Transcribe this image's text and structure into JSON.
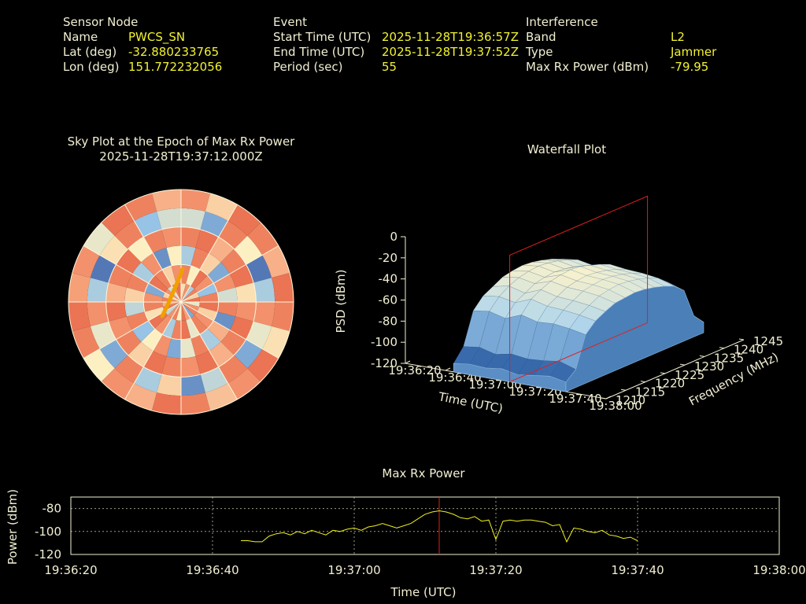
{
  "header": {
    "columns": [
      {
        "title": "Sensor Node",
        "rows": [
          {
            "label": "Name",
            "value": "PWCS_SN"
          },
          {
            "label": "Lat (deg)",
            "value": "-32.880233765"
          },
          {
            "label": "Lon (deg)",
            "value": "151.772232056"
          }
        ]
      },
      {
        "title": "Event",
        "rows": [
          {
            "label": "Start Time (UTC)",
            "value": "2025-11-28T19:36:57Z"
          },
          {
            "label": "End Time (UTC)",
            "value": "2025-11-28T19:37:52Z"
          },
          {
            "label": "Period (sec)",
            "value": "55"
          }
        ]
      },
      {
        "title": "Interference",
        "rows": [
          {
            "label": "Band",
            "value": "L2"
          },
          {
            "label": "Type",
            "value": "Jammer"
          },
          {
            "label": "Max Rx Power (dBm)",
            "value": "-79.95"
          }
        ]
      }
    ]
  },
  "chart_data": [
    {
      "type": "polar_heatmap",
      "title": "Sky Plot at the Epoch of Max Rx Power",
      "subtitle": "2025-11-28T19:37:12.000Z",
      "vlim": [
        0,
        1
      ],
      "track_color": "#f0a000",
      "values": [
        [
          0.55,
          0.8,
          0.3,
          0.85,
          0.6,
          0.9,
          0.45,
          0.8,
          0.85,
          0.2,
          0.75,
          0.9,
          0.5,
          0.85,
          0.8,
          0.35,
          0.9,
          0.7,
          0.85,
          0.6,
          0.8,
          0.4,
          0.85,
          0.9
        ],
        [
          0.85,
          0.5,
          0.9,
          0.8,
          0.25,
          0.85,
          0.9,
          0.6,
          0.8,
          0.85,
          0.45,
          0.9,
          0.85,
          0.3,
          0.8,
          0.9,
          0.55,
          0.85,
          0.8,
          0.2,
          0.9,
          0.85,
          0.6,
          0.8
        ],
        [
          0.3,
          0.85,
          0.6,
          0.2,
          0.8,
          0.4,
          0.85,
          0.15,
          0.7,
          0.3,
          0.85,
          0.45,
          0.2,
          0.8,
          0.5,
          0.25,
          0.85,
          0.35,
          0.6,
          0.85,
          0.3,
          0.8,
          0.15,
          0.5
        ],
        [
          0.85,
          0.9,
          0.7,
          0.85,
          0.9,
          0.55,
          0.8,
          0.9,
          0.85,
          0.7,
          0.9,
          0.8,
          0.85,
          0.9,
          0.6,
          0.85,
          0.8,
          0.9,
          0.7,
          0.85,
          0.9,
          0.5,
          0.85,
          0.8
        ],
        [
          0.4,
          0.2,
          0.85,
          0.5,
          0.1,
          0.3,
          0.8,
          0.45,
          0.2,
          0.85,
          0.35,
          0.15,
          0.6,
          0.3,
          0.85,
          0.2,
          0.45,
          0.8,
          0.3,
          0.1,
          0.55,
          0.85,
          0.25,
          0.4
        ],
        [
          0.8,
          0.6,
          0.9,
          0.85,
          0.7,
          0.9,
          0.85,
          0.55,
          0.9,
          0.8,
          0.65,
          0.85,
          0.9,
          0.7,
          0.8,
          0.5,
          0.85,
          0.9,
          0.75,
          0.8,
          0.45,
          0.9,
          0.85,
          0.7
        ]
      ]
    },
    {
      "type": "surface3d",
      "title": "Waterfall Plot",
      "x_label": "Time (UTC)",
      "y_label": "Frequency (MHz)",
      "z_label": "PSD (dBm)",
      "x": [
        "19:36:44",
        "19:36:52",
        "19:37:00",
        "19:37:08",
        "19:37:16",
        "19:37:24",
        "19:37:32",
        "19:37:40"
      ],
      "y": [
        1210,
        1212.5,
        1215,
        1217.5,
        1220,
        1222.5,
        1225,
        1227.5,
        1230,
        1232.5,
        1235,
        1237.5,
        1240,
        1242.5,
        1245
      ],
      "values": [
        [
          -112,
          -110,
          -111,
          -109,
          -112,
          -110,
          -108,
          -111
        ],
        [
          -100,
          -98,
          -102,
          -99,
          -101,
          -100,
          -98,
          -103
        ],
        [
          -70,
          -68,
          -72,
          -66,
          -70,
          -69,
          -71,
          -74
        ],
        [
          -60,
          -58,
          -61,
          -55,
          -59,
          -60,
          -62,
          -65
        ],
        [
          -55,
          -52,
          -56,
          -50,
          -54,
          -55,
          -57,
          -60
        ],
        [
          -50,
          -48,
          -51,
          -46,
          -49,
          -50,
          -52,
          -56
        ],
        [
          -48,
          -46,
          -49,
          -44,
          -47,
          -48,
          -50,
          -55
        ],
        [
          -47,
          -45,
          -48,
          -43,
          -46,
          -47,
          -49,
          -54
        ],
        [
          -48,
          -46,
          -49,
          -44,
          -47,
          -48,
          -50,
          -55
        ],
        [
          -50,
          -48,
          -51,
          -47,
          -49,
          -50,
          -52,
          -57
        ],
        [
          -53,
          -51,
          -54,
          -50,
          -52,
          -53,
          -55,
          -60
        ],
        [
          -57,
          -55,
          -58,
          -54,
          -56,
          -57,
          -59,
          -64
        ],
        [
          -65,
          -63,
          -66,
          -62,
          -64,
          -65,
          -67,
          -72
        ],
        [
          -95,
          -93,
          -96,
          -92,
          -94,
          -95,
          -97,
          -100
        ],
        [
          -110,
          -109,
          -111,
          -108,
          -110,
          -109,
          -112,
          -110
        ]
      ],
      "xlim": [
        "19:36:20",
        "19:38:00"
      ],
      "xticks": [
        "19:36:20",
        "19:36:40",
        "19:37:00",
        "19:37:20",
        "19:37:40",
        "19:38:00"
      ],
      "ylim": [
        1210,
        1245
      ],
      "yticks": [
        1210,
        1215,
        1220,
        1225,
        1230,
        1235,
        1240,
        1245
      ],
      "zlim": [
        -120,
        0
      ],
      "zticks": [
        -120,
        -100,
        -80,
        -60,
        -40,
        -20,
        0
      ],
      "marker_x": "19:37:12",
      "marker_color": "#e02020"
    },
    {
      "type": "line",
      "title": "Max Rx Power",
      "x_label": "Time (UTC)",
      "y_label": "Power (dBm)",
      "color": "#f0f020",
      "x": [
        "19:36:44",
        "19:36:45",
        "19:36:46",
        "19:36:47",
        "19:36:48",
        "19:36:49",
        "19:36:50",
        "19:36:51",
        "19:36:52",
        "19:36:53",
        "19:36:54",
        "19:36:55",
        "19:36:56",
        "19:36:57",
        "19:36:58",
        "19:36:59",
        "19:37:00",
        "19:37:01",
        "19:37:02",
        "19:37:03",
        "19:37:04",
        "19:37:05",
        "19:37:06",
        "19:37:07",
        "19:37:08",
        "19:37:09",
        "19:37:10",
        "19:37:11",
        "19:37:12",
        "19:37:13",
        "19:37:14",
        "19:37:15",
        "19:37:16",
        "19:37:17",
        "19:37:18",
        "19:37:19",
        "19:37:20",
        "19:37:21",
        "19:37:22",
        "19:37:23",
        "19:37:24",
        "19:37:25",
        "19:37:26",
        "19:37:27",
        "19:37:28",
        "19:37:29",
        "19:37:30",
        "19:37:31",
        "19:37:32",
        "19:37:33",
        "19:37:34",
        "19:37:35",
        "19:37:36",
        "19:37:37",
        "19:37:38",
        "19:37:39",
        "19:37:40"
      ],
      "values": [
        -108,
        -108,
        -109,
        -109,
        -104,
        -102,
        -101,
        -103,
        -100,
        -102,
        -99,
        -101,
        -103,
        -99,
        -100,
        -98,
        -97,
        -99,
        -96,
        -95,
        -93,
        -95,
        -97,
        -95,
        -93,
        -89,
        -85,
        -83,
        -82,
        -83,
        -85,
        -88,
        -89,
        -87,
        -91,
        -90,
        -107,
        -91,
        -90,
        -91,
        -90,
        -90,
        -91,
        -92,
        -95,
        -94,
        -109,
        -97,
        -98,
        -100,
        -101,
        -99,
        -103,
        -104,
        -106,
        -105,
        -108
      ],
      "xlim": [
        "19:36:20",
        "19:38:00"
      ],
      "xticks": [
        "19:36:20",
        "19:36:40",
        "19:37:00",
        "19:37:20",
        "19:37:40",
        "19:38:00"
      ],
      "ylim": [
        -120,
        -70
      ],
      "yticks": [
        -120,
        -100,
        -80
      ],
      "grid": true,
      "marker_x": "19:37:12",
      "marker_color": "#e02020"
    }
  ]
}
